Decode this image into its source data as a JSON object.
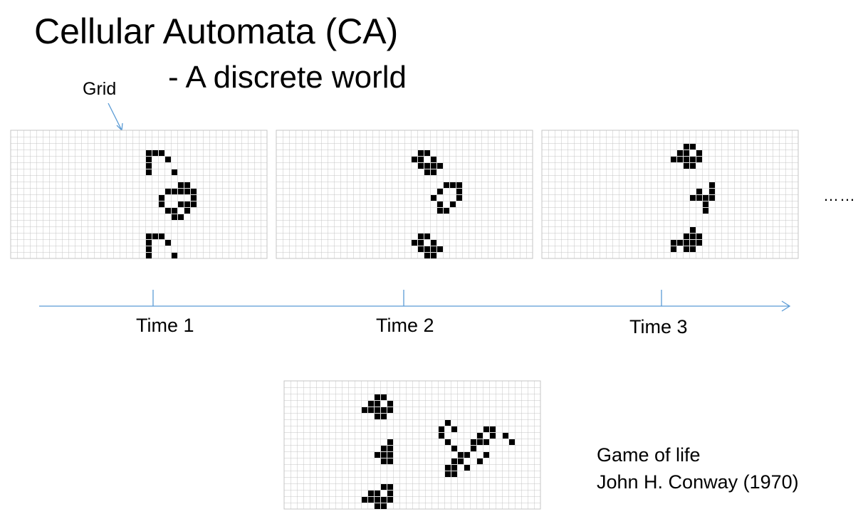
{
  "title": "Cellular Automata (CA)",
  "subtitle": "- A discrete world",
  "grid_callout": "Grid",
  "ellipsis": "……",
  "timeline": {
    "labels": [
      "Time 1",
      "Time 2",
      "Time 3"
    ]
  },
  "credit": {
    "line1": "Game of life",
    "line2": "John H. Conway (1970)"
  },
  "colors": {
    "axis": "#5b9bd5",
    "grid_line": "#c4c4c4",
    "live_cell": "#000000"
  },
  "grids": [
    {
      "name": "grid-time-1",
      "cols": 40,
      "rows": 20,
      "live_cells": [
        [
          21,
          3
        ],
        [
          22,
          3
        ],
        [
          23,
          3
        ],
        [
          21,
          4
        ],
        [
          24,
          4
        ],
        [
          21,
          5
        ],
        [
          21,
          6
        ],
        [
          25,
          6
        ],
        [
          26,
          8
        ],
        [
          27,
          8
        ],
        [
          24,
          9
        ],
        [
          25,
          9
        ],
        [
          26,
          9
        ],
        [
          27,
          9
        ],
        [
          28,
          9
        ],
        [
          23,
          10
        ],
        [
          28,
          10
        ],
        [
          23,
          11
        ],
        [
          26,
          11
        ],
        [
          27,
          11
        ],
        [
          28,
          11
        ],
        [
          24,
          12
        ],
        [
          25,
          12
        ],
        [
          27,
          12
        ],
        [
          25,
          13
        ],
        [
          26,
          13
        ],
        [
          21,
          16
        ],
        [
          22,
          16
        ],
        [
          23,
          16
        ],
        [
          21,
          17
        ],
        [
          24,
          17
        ],
        [
          21,
          18
        ],
        [
          21,
          19
        ],
        [
          25,
          19
        ]
      ]
    },
    {
      "name": "grid-time-2",
      "cols": 40,
      "rows": 20,
      "live_cells": [
        [
          22,
          3
        ],
        [
          23,
          3
        ],
        [
          21,
          4
        ],
        [
          22,
          4
        ],
        [
          24,
          4
        ],
        [
          22,
          5
        ],
        [
          23,
          5
        ],
        [
          24,
          5
        ],
        [
          25,
          5
        ],
        [
          23,
          6
        ],
        [
          24,
          6
        ],
        [
          26,
          8
        ],
        [
          27,
          8
        ],
        [
          28,
          8
        ],
        [
          25,
          9
        ],
        [
          28,
          9
        ],
        [
          24,
          10
        ],
        [
          28,
          10
        ],
        [
          25,
          11
        ],
        [
          27,
          11
        ],
        [
          25,
          12
        ],
        [
          26,
          12
        ],
        [
          22,
          16
        ],
        [
          23,
          16
        ],
        [
          21,
          17
        ],
        [
          22,
          17
        ],
        [
          24,
          17
        ],
        [
          22,
          18
        ],
        [
          23,
          18
        ],
        [
          24,
          18
        ],
        [
          25,
          18
        ],
        [
          23,
          19
        ],
        [
          24,
          19
        ]
      ]
    },
    {
      "name": "grid-time-3",
      "cols": 40,
      "rows": 20,
      "live_cells": [
        [
          22,
          2
        ],
        [
          23,
          2
        ],
        [
          21,
          3
        ],
        [
          22,
          3
        ],
        [
          24,
          3
        ],
        [
          20,
          4
        ],
        [
          21,
          4
        ],
        [
          22,
          4
        ],
        [
          23,
          4
        ],
        [
          24,
          4
        ],
        [
          22,
          5
        ],
        [
          23,
          5
        ],
        [
          26,
          8
        ],
        [
          24,
          9
        ],
        [
          26,
          9
        ],
        [
          23,
          10
        ],
        [
          24,
          10
        ],
        [
          25,
          10
        ],
        [
          26,
          10
        ],
        [
          25,
          11
        ],
        [
          25,
          12
        ],
        [
          23,
          15
        ],
        [
          22,
          16
        ],
        [
          23,
          16
        ],
        [
          24,
          16
        ],
        [
          20,
          17
        ],
        [
          21,
          17
        ],
        [
          22,
          17
        ],
        [
          23,
          17
        ],
        [
          24,
          17
        ],
        [
          20,
          18
        ],
        [
          22,
          18
        ],
        [
          23,
          18
        ]
      ]
    },
    {
      "name": "grid-game-of-life",
      "cols": 40,
      "rows": 20,
      "live_cells": [
        [
          14,
          2
        ],
        [
          15,
          2
        ],
        [
          13,
          3
        ],
        [
          14,
          3
        ],
        [
          16,
          3
        ],
        [
          12,
          4
        ],
        [
          13,
          4
        ],
        [
          14,
          4
        ],
        [
          15,
          4
        ],
        [
          16,
          4
        ],
        [
          14,
          5
        ],
        [
          15,
          5
        ],
        [
          25,
          6
        ],
        [
          24,
          7
        ],
        [
          26,
          7
        ],
        [
          31,
          7
        ],
        [
          32,
          7
        ],
        [
          24,
          8
        ],
        [
          30,
          8
        ],
        [
          32,
          8
        ],
        [
          34,
          8
        ],
        [
          25,
          9
        ],
        [
          29,
          9
        ],
        [
          30,
          9
        ],
        [
          31,
          9
        ],
        [
          35,
          9
        ],
        [
          16,
          9
        ],
        [
          15,
          10
        ],
        [
          16,
          10
        ],
        [
          14,
          11
        ],
        [
          15,
          11
        ],
        [
          16,
          11
        ],
        [
          15,
          12
        ],
        [
          16,
          12
        ],
        [
          26,
          10
        ],
        [
          29,
          10
        ],
        [
          27,
          11
        ],
        [
          28,
          11
        ],
        [
          31,
          11
        ],
        [
          26,
          12
        ],
        [
          27,
          12
        ],
        [
          30,
          12
        ],
        [
          25,
          13
        ],
        [
          26,
          13
        ],
        [
          28,
          13
        ],
        [
          25,
          14
        ],
        [
          26,
          14
        ],
        [
          15,
          16
        ],
        [
          16,
          16
        ],
        [
          13,
          17
        ],
        [
          14,
          17
        ],
        [
          16,
          17
        ],
        [
          12,
          18
        ],
        [
          13,
          18
        ],
        [
          14,
          18
        ],
        [
          15,
          18
        ],
        [
          16,
          18
        ],
        [
          14,
          19
        ],
        [
          15,
          19
        ]
      ]
    }
  ]
}
